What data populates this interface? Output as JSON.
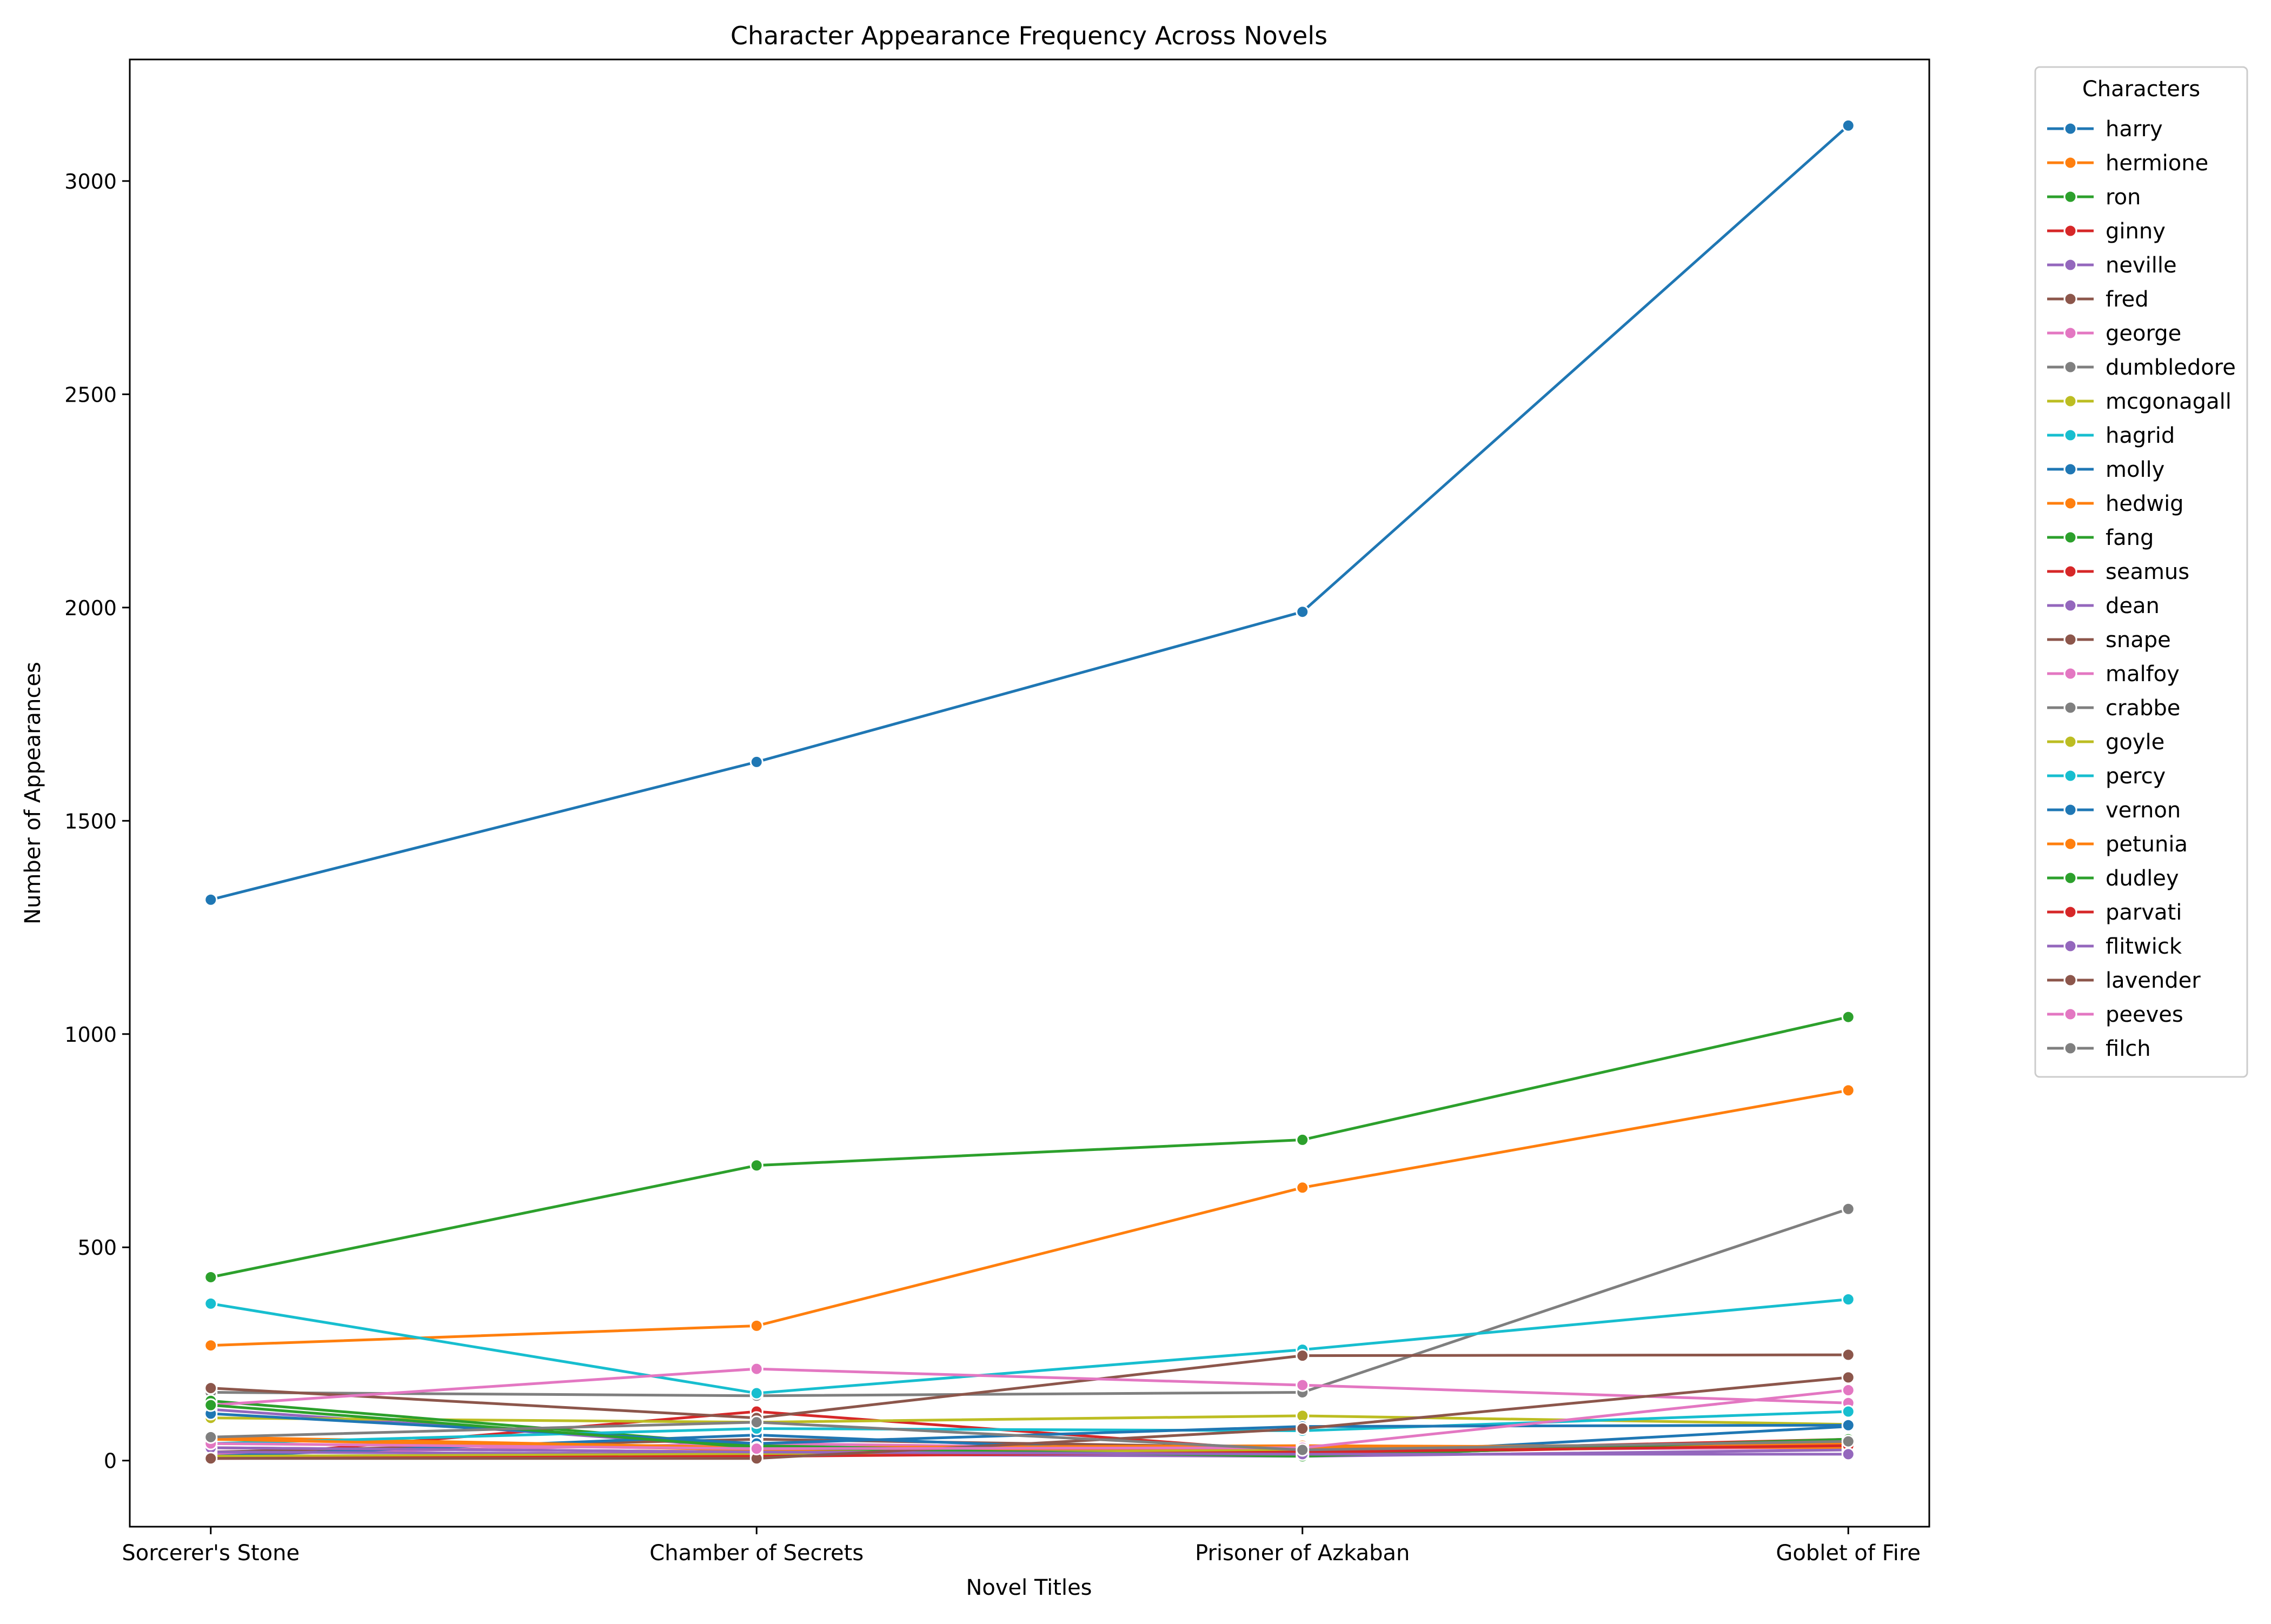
{
  "chart_data": {
    "type": "line",
    "title": "Character Appearance Frequency Across Novels",
    "xlabel": "Novel Titles",
    "ylabel": "Number of Appearances",
    "categories": [
      "Sorcerer's Stone",
      "Chamber of Secrets",
      "Prisoner of Azkaban",
      "Goblet of Fire"
    ],
    "ylim": [
      -155,
      3285
    ],
    "yticks": [
      0,
      500,
      1000,
      1500,
      2000,
      2500,
      3000
    ],
    "grid": false,
    "legend": {
      "title": "Characters",
      "placement": "outside-right-top"
    },
    "series": [
      {
        "name": "harry",
        "color": "#1f77b4",
        "values": [
          1315,
          1638,
          1990,
          3130
        ]
      },
      {
        "name": "hermione",
        "color": "#ff7f0e",
        "values": [
          270,
          316,
          640,
          868
        ]
      },
      {
        "name": "ron",
        "color": "#2ca02c",
        "values": [
          430,
          692,
          752,
          1040
        ]
      },
      {
        "name": "ginny",
        "color": "#d62728",
        "values": [
          5,
          115,
          20,
          50
        ]
      },
      {
        "name": "neville",
        "color": "#9467bd",
        "values": [
          120,
          30,
          20,
          40
        ]
      },
      {
        "name": "fred",
        "color": "#8c564b",
        "values": [
          20,
          50,
          30,
          40
        ]
      },
      {
        "name": "george",
        "color": "#e377c2",
        "values": [
          15,
          40,
          25,
          30
        ]
      },
      {
        "name": "dumbledore",
        "color": "#7f7f7f",
        "values": [
          160,
          152,
          160,
          590
        ]
      },
      {
        "name": "mcgonagall",
        "color": "#bcbd22",
        "values": [
          100,
          90,
          105,
          85
        ]
      },
      {
        "name": "hagrid",
        "color": "#17becf",
        "values": [
          368,
          158,
          260,
          378
        ]
      },
      {
        "name": "molly",
        "color": "#1f77b4",
        "values": [
          10,
          60,
          10,
          80
        ]
      },
      {
        "name": "hedwig",
        "color": "#ff7f0e",
        "values": [
          55,
          30,
          35,
          30
        ]
      },
      {
        "name": "fang",
        "color": "#2ca02c",
        "values": [
          140,
          35,
          10,
          50
        ]
      },
      {
        "name": "seamus",
        "color": "#d62728",
        "values": [
          30,
          20,
          15,
          40
        ]
      },
      {
        "name": "dean",
        "color": "#9467bd",
        "values": [
          20,
          15,
          10,
          25
        ]
      },
      {
        "name": "snape",
        "color": "#8c564b",
        "values": [
          170,
          100,
          246,
          248
        ]
      },
      {
        "name": "malfoy",
        "color": "#e377c2",
        "values": [
          130,
          215,
          177,
          135
        ]
      },
      {
        "name": "crabbe",
        "color": "#7f7f7f",
        "values": [
          10,
          15,
          30,
          40
        ]
      },
      {
        "name": "goyle",
        "color": "#bcbd22",
        "values": [
          10,
          15,
          25,
          35
        ]
      },
      {
        "name": "percy",
        "color": "#17becf",
        "values": [
          40,
          75,
          70,
          115
        ]
      },
      {
        "name": "vernon",
        "color": "#1f77b4",
        "values": [
          110,
          40,
          80,
          83
        ]
      },
      {
        "name": "petunia",
        "color": "#ff7f0e",
        "values": [
          50,
          25,
          30,
          40
        ]
      },
      {
        "name": "dudley",
        "color": "#2ca02c",
        "values": [
          130,
          30,
          10,
          50
        ]
      },
      {
        "name": "parvati",
        "color": "#d62728",
        "values": [
          5,
          10,
          20,
          35
        ]
      },
      {
        "name": "flitwick",
        "color": "#9467bd",
        "values": [
          30,
          20,
          15,
          15
        ]
      },
      {
        "name": "lavender",
        "color": "#8c564b",
        "values": [
          5,
          5,
          75,
          195
        ]
      },
      {
        "name": "peeves",
        "color": "#e377c2",
        "values": [
          40,
          28,
          30,
          165
        ]
      },
      {
        "name": "filch",
        "color": "#7f7f7f",
        "values": [
          55,
          90,
          25,
          45
        ]
      }
    ]
  }
}
